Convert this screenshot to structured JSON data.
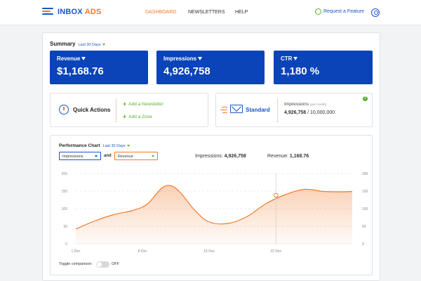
{
  "brand": {
    "name_primary": "INBOX",
    "name_accent": "ADS"
  },
  "nav": {
    "items": [
      {
        "label": "DASHBOARD",
        "active": true
      },
      {
        "label": "NEWSLETTERS",
        "active": false
      },
      {
        "label": "HELP",
        "active": false
      }
    ],
    "request_feature": "Request a Feature"
  },
  "summary": {
    "title": "Summary",
    "period": "Last 30 Days",
    "kpis": [
      {
        "label": "Revenue",
        "value": "$1,168.76"
      },
      {
        "label": "Impressions",
        "value": "4,926,758"
      },
      {
        "label": "CTR",
        "value": "1,180 %"
      }
    ]
  },
  "quick_actions": {
    "title": "Quick Actions",
    "links": [
      "Add a Newsletter",
      "Add a Zone"
    ]
  },
  "plan": {
    "name": "Standard",
    "impressions_label": "Impressions",
    "impressions_note": "(per month)",
    "used": "4,926,758",
    "limit": "/ 10,000,000",
    "help_symbol": "?"
  },
  "performance": {
    "title": "Performance Chart",
    "period": "Last 30 Days",
    "metric_left": "Impressions",
    "connector": "and",
    "metric_right": "Revenue",
    "impressions_label": "Impressions:",
    "impressions_value": "4,926,758",
    "revenue_label": "Revenue:",
    "revenue_value": "1,168.76",
    "toggle_label": "Toggle comparison:",
    "toggle_state": "OFF"
  },
  "colors": {
    "brand_blue": "#0a44b8",
    "accent_orange": "#f07a2a",
    "accent_green": "#5bb02a"
  },
  "chart_data": {
    "type": "area",
    "x_ticks": [
      "1 Dec",
      "8 Dec",
      "15 Dec",
      "22 Dec"
    ],
    "y_ticks_left": [
      0,
      50,
      100,
      150,
      200
    ],
    "y_ticks_right": [
      0,
      50,
      100,
      150,
      200
    ],
    "ylim": [
      0,
      200
    ],
    "xlim": [
      1,
      30
    ],
    "grid": true,
    "series": [
      {
        "x": [
          1,
          3,
          5,
          7,
          8.5,
          10,
          11,
          12,
          13.5,
          15,
          17,
          19,
          21,
          23,
          25,
          27,
          29,
          30
        ],
        "y": [
          42,
          65,
          83,
          95,
          113,
          158,
          165,
          145,
          95,
          62,
          58,
          78,
          115,
          140,
          155,
          149,
          148,
          149
        ]
      }
    ],
    "marker": {
      "x": 22,
      "y": 138
    }
  }
}
